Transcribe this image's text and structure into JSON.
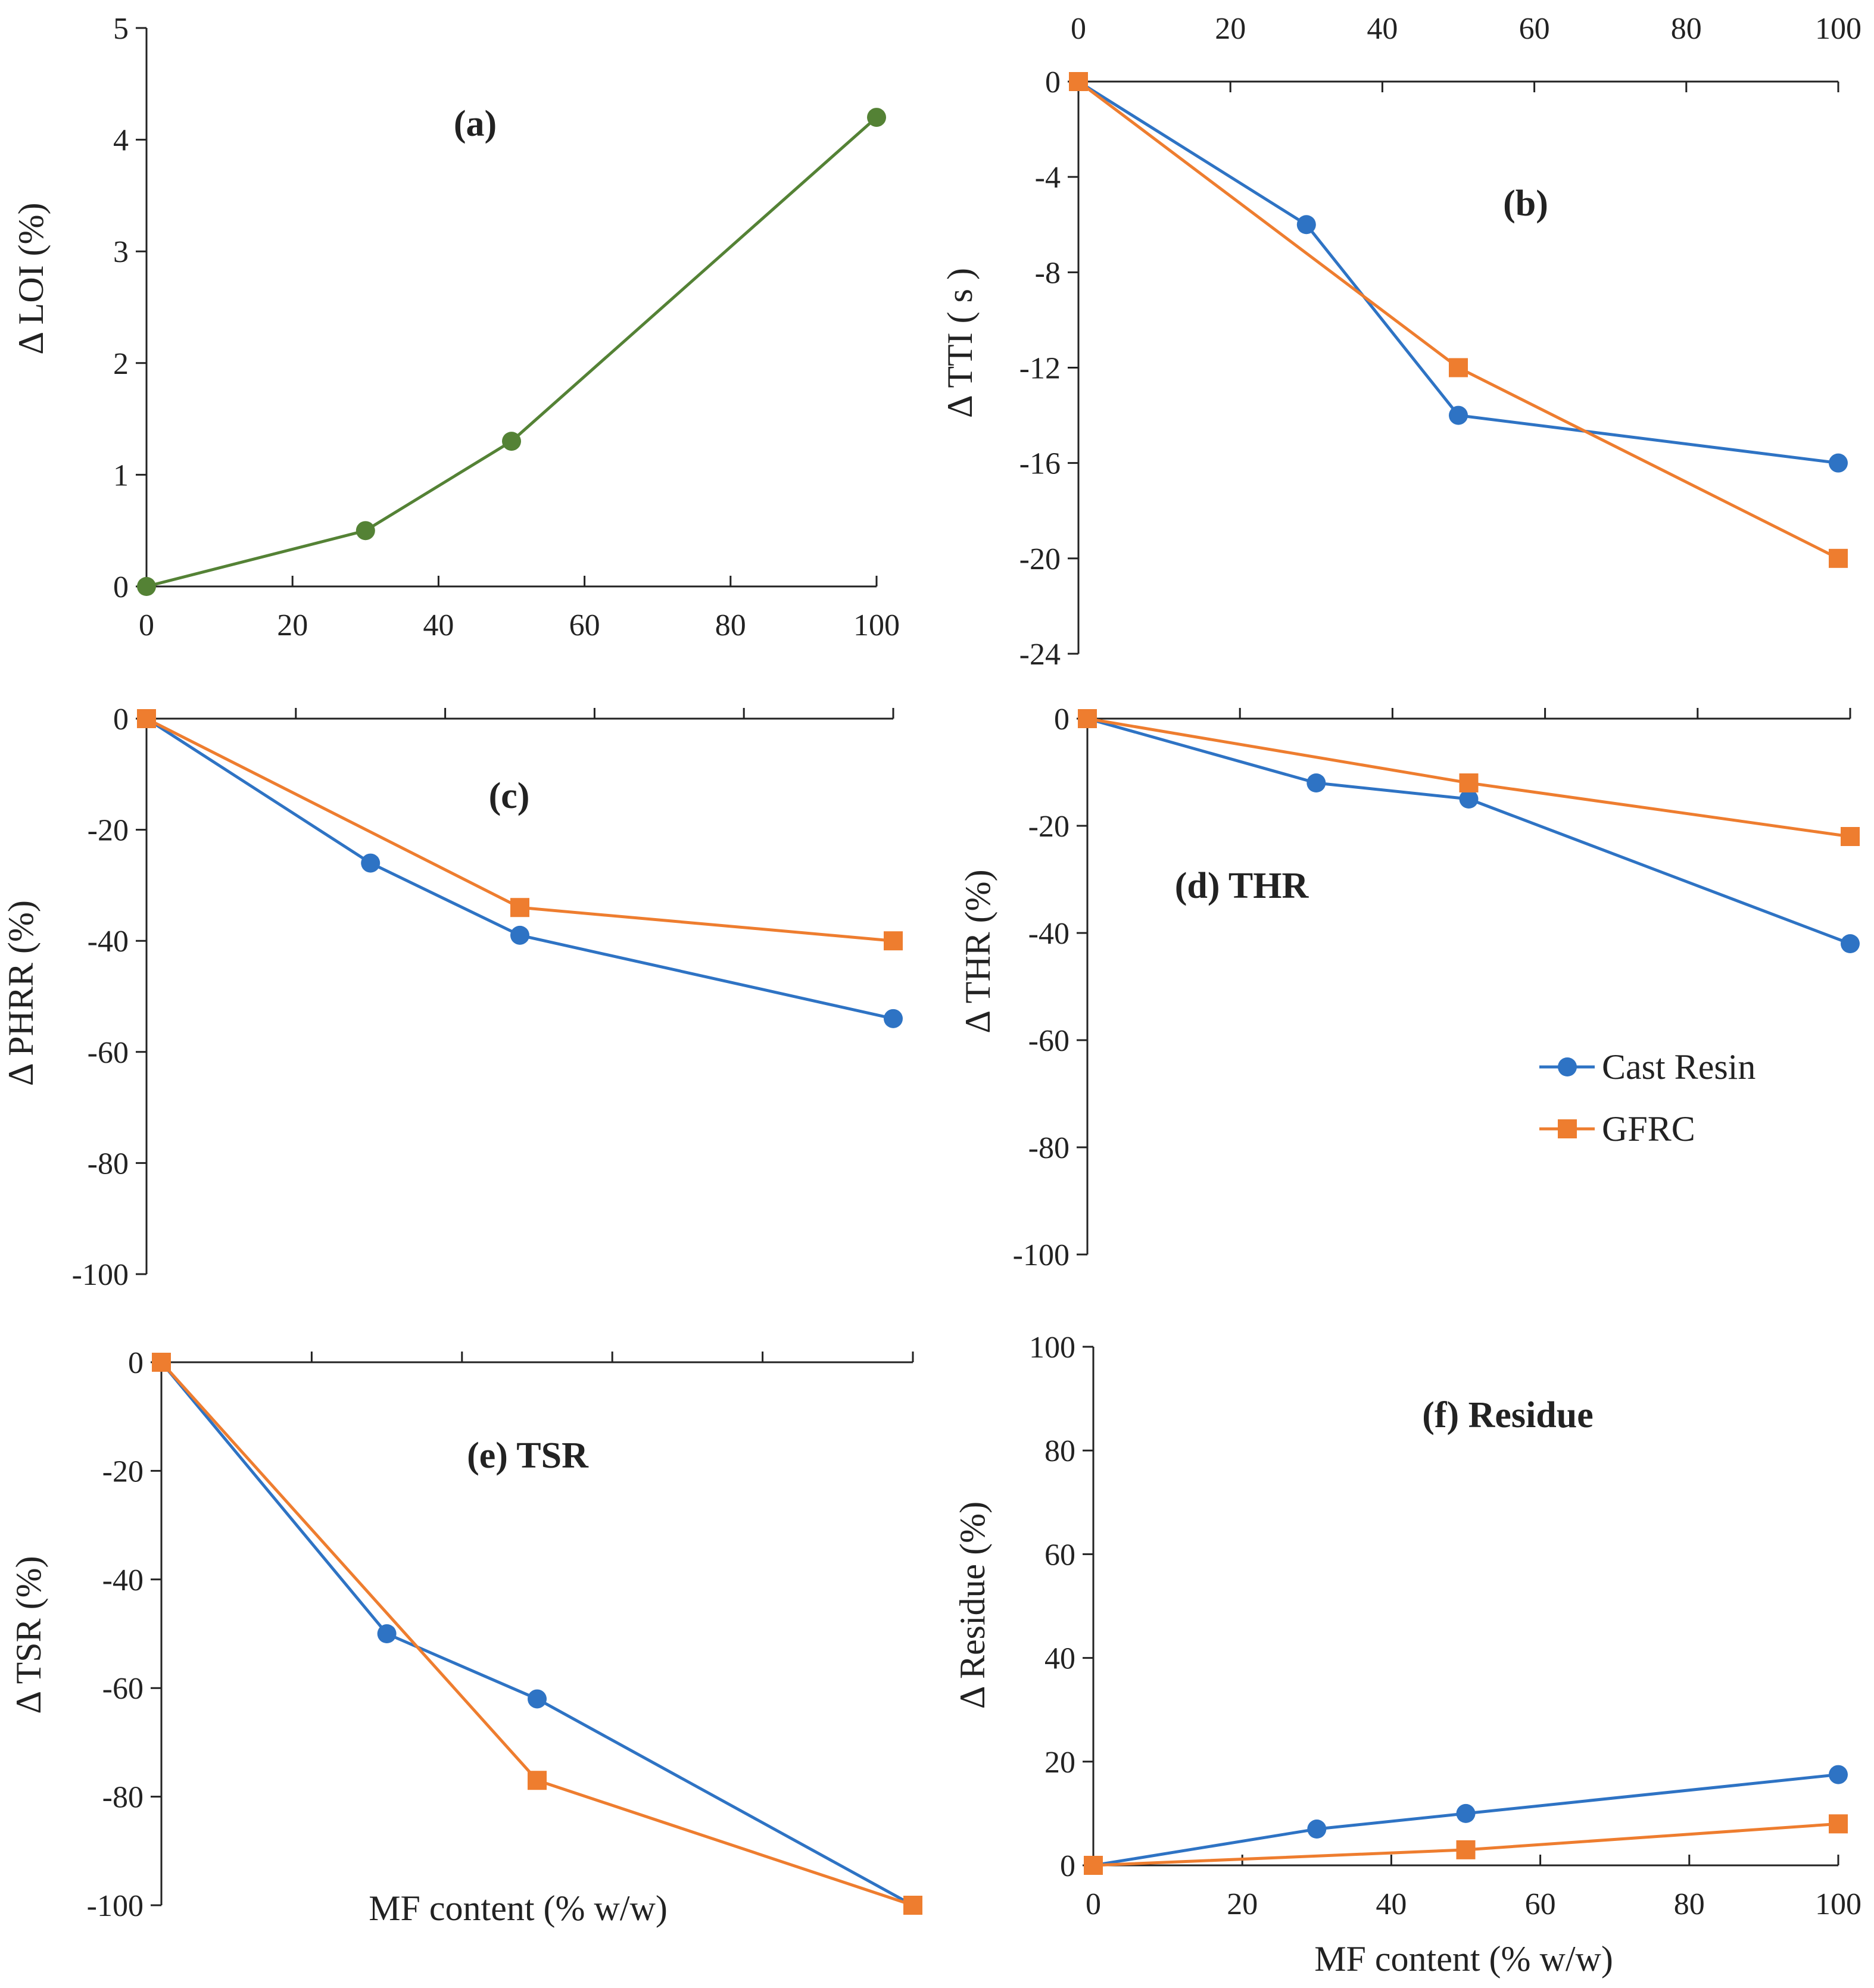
{
  "colors": {
    "cast_resin": "#2E73C4",
    "gfrc": "#EE7D2F",
    "loi": "#548235",
    "axis": "#222222"
  },
  "legend": {
    "cast_resin": "Cast Resin",
    "gfrc": "GFRC"
  },
  "chart_data": [
    {
      "id": "a",
      "type": "line",
      "panel_label": "(a)",
      "ylabel": "Δ LOI (%)",
      "xlabel": "",
      "ylim": [
        0,
        5
      ],
      "xlim": [
        0,
        100
      ],
      "yticks": [
        "0",
        "1",
        "2",
        "3",
        "4",
        "5"
      ],
      "xticks": [
        "0",
        "20",
        "40",
        "60",
        "80",
        "100"
      ],
      "series": [
        {
          "name": "LOI",
          "marker": "circle",
          "color": "#548235",
          "x": [
            0,
            30,
            50,
            100
          ],
          "values": [
            0,
            0.5,
            1.3,
            4.2
          ]
        }
      ]
    },
    {
      "id": "b",
      "type": "line",
      "panel_label": "(b)",
      "ylabel": "Δ TTI ( s )",
      "xlabel": "",
      "ylim": [
        -24,
        0
      ],
      "xlim": [
        0,
        100
      ],
      "yticks": [
        "0",
        "-4",
        "-8",
        "-12",
        "-16",
        "-20",
        "-24"
      ],
      "xticks": [
        "0",
        "20",
        "40",
        "60",
        "80",
        "100"
      ],
      "series": [
        {
          "name": "Cast Resin",
          "marker": "circle",
          "color": "#2E73C4",
          "x": [
            0,
            30,
            50,
            100
          ],
          "values": [
            0,
            -6,
            -14,
            -16
          ]
        },
        {
          "name": "GFRC",
          "marker": "square",
          "color": "#EE7D2F",
          "x": [
            0,
            50,
            100
          ],
          "values": [
            0,
            -12,
            -20
          ]
        }
      ]
    },
    {
      "id": "c",
      "type": "line",
      "panel_label": "(c)",
      "ylabel": "Δ PHRR (%)",
      "xlabel": "",
      "ylim": [
        -100,
        0
      ],
      "xlim": [
        0,
        100
      ],
      "yticks": [
        "0",
        "-20",
        "-40",
        "-60",
        "-80",
        "-100"
      ],
      "xticks": [],
      "series": [
        {
          "name": "Cast Resin",
          "marker": "circle",
          "color": "#2E73C4",
          "x": [
            0,
            30,
            50,
            100
          ],
          "values": [
            0,
            -26,
            -39,
            -54
          ]
        },
        {
          "name": "GFRC",
          "marker": "square",
          "color": "#EE7D2F",
          "x": [
            0,
            50,
            100
          ],
          "values": [
            0,
            -34,
            -40
          ]
        }
      ]
    },
    {
      "id": "d",
      "type": "line",
      "panel_label": "(d) THR",
      "ylabel": "Δ THR (%)",
      "xlabel": "",
      "ylim": [
        -100,
        0
      ],
      "xlim": [
        0,
        100
      ],
      "yticks": [
        "0",
        "-20",
        "-40",
        "-60",
        "-80",
        "-100"
      ],
      "xticks": [],
      "series": [
        {
          "name": "Cast Resin",
          "marker": "circle",
          "color": "#2E73C4",
          "x": [
            0,
            30,
            50,
            100
          ],
          "values": [
            0,
            -12,
            -15,
            -42
          ]
        },
        {
          "name": "GFRC",
          "marker": "square",
          "color": "#EE7D2F",
          "x": [
            0,
            50,
            100
          ],
          "values": [
            0,
            -12,
            -22
          ]
        }
      ]
    },
    {
      "id": "e",
      "type": "line",
      "panel_label": "(e) TSR",
      "ylabel": "Δ TSR (%)",
      "xlabel": "MF content (% w/w)",
      "ylim": [
        -100,
        0
      ],
      "xlim": [
        0,
        100
      ],
      "yticks": [
        "0",
        "-20",
        "-40",
        "-60",
        "-80",
        "-100"
      ],
      "xticks": [],
      "series": [
        {
          "name": "Cast Resin",
          "marker": "circle",
          "color": "#2E73C4",
          "x": [
            0,
            30,
            50,
            100
          ],
          "values": [
            0,
            -50,
            -62,
            -100
          ]
        },
        {
          "name": "GFRC",
          "marker": "square",
          "color": "#EE7D2F",
          "x": [
            0,
            50,
            100
          ],
          "values": [
            0,
            -77,
            -100
          ]
        }
      ]
    },
    {
      "id": "f",
      "type": "line",
      "panel_label": "(f) Residue",
      "ylabel": "Δ Residue (%)",
      "xlabel": "MF content (% w/w)",
      "ylim": [
        0,
        100
      ],
      "xlim": [
        0,
        100
      ],
      "yticks": [
        "0",
        "20",
        "40",
        "60",
        "80",
        "100"
      ],
      "xticks": [
        "0",
        "20",
        "40",
        "60",
        "80",
        "100"
      ],
      "series": [
        {
          "name": "Cast Resin",
          "marker": "circle",
          "color": "#2E73C4",
          "x": [
            0,
            30,
            50,
            100
          ],
          "values": [
            0,
            7,
            10,
            17.5
          ]
        },
        {
          "name": "GFRC",
          "marker": "square",
          "color": "#EE7D2F",
          "x": [
            0,
            50,
            100
          ],
          "values": [
            0,
            3,
            8
          ]
        }
      ]
    }
  ]
}
